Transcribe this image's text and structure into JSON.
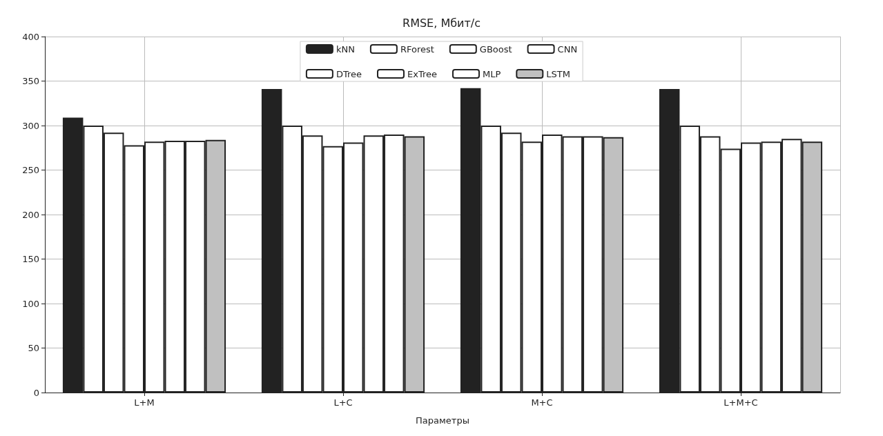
{
  "chart_data": {
    "type": "bar",
    "title": "RMSE, Мбит/с",
    "xlabel": "Параметры",
    "categories": [
      "L+M",
      "L+C",
      "M+C",
      "L+M+C"
    ],
    "series": [
      {
        "name": "kNN",
        "color": "#222222",
        "values": [
          309,
          341,
          342,
          341
        ]
      },
      {
        "name": "DTree",
        "color": "#ffffff",
        "values": [
          300,
          300,
          300,
          300
        ]
      },
      {
        "name": "RForest",
        "color": "#ffffff",
        "values": [
          292,
          289,
          292,
          288
        ]
      },
      {
        "name": "ExTree",
        "color": "#ffffff",
        "values": [
          278,
          277,
          282,
          274
        ]
      },
      {
        "name": "GBoost",
        "color": "#ffffff",
        "values": [
          282,
          281,
          290,
          281
        ]
      },
      {
        "name": "MLP",
        "color": "#ffffff",
        "values": [
          283,
          289,
          288,
          282
        ]
      },
      {
        "name": "CNN",
        "color": "#ffffff",
        "values": [
          283,
          290,
          288,
          285
        ]
      },
      {
        "name": "LSTM",
        "color": "#c0c0c0",
        "values": [
          284,
          288,
          287,
          282
        ]
      }
    ],
    "ylim": [
      0,
      400
    ],
    "yticks": [
      0,
      50,
      100,
      150,
      200,
      250,
      300,
      350,
      400
    ],
    "grid": true,
    "legend": "top"
  }
}
